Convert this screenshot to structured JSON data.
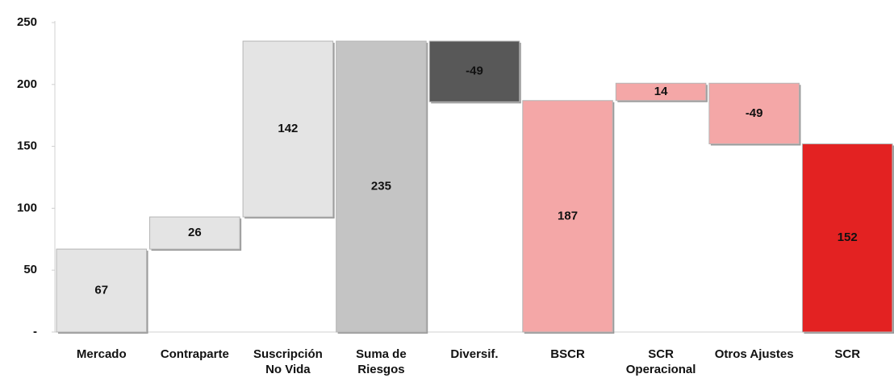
{
  "chart_data": {
    "type": "waterfall",
    "categories": [
      "Mercado",
      "Contraparte",
      "Suscripción No Vida",
      "Suma de Riesgos",
      "Diversif.",
      "BSCR",
      "SCR Operacional",
      "Otros Ajustes",
      "SCR"
    ],
    "values": [
      67,
      26,
      142,
      235,
      -49,
      187,
      14,
      -49,
      152
    ],
    "totals": [
      false,
      false,
      false,
      true,
      false,
      true,
      false,
      false,
      true
    ],
    "colors": [
      "#e4e4e4",
      "#e4e4e4",
      "#e4e4e4",
      "#c4c4c4",
      "#585858",
      "#f4a7a7",
      "#f4a7a7",
      "#f4a7a7",
      "#e32222"
    ],
    "ylim": [
      0,
      250
    ],
    "yticks": [
      {
        "value": 0,
        "label": "-"
      },
      50,
      100,
      150,
      200,
      250
    ],
    "grid": false
  }
}
